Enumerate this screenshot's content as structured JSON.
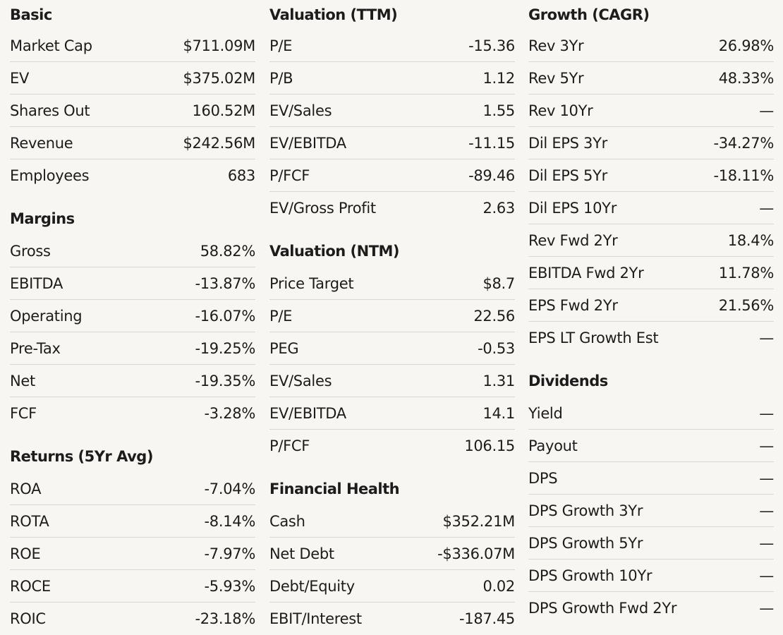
{
  "columns": [
    {
      "sections": [
        {
          "title": "Basic",
          "rows": [
            {
              "label": "Market Cap",
              "value": "$711.09M"
            },
            {
              "label": "EV",
              "value": "$375.02M"
            },
            {
              "label": "Shares Out",
              "value": "160.52M"
            },
            {
              "label": "Revenue",
              "value": "$242.56M"
            },
            {
              "label": "Employees",
              "value": "683"
            }
          ]
        },
        {
          "title": "Margins",
          "rows": [
            {
              "label": "Gross",
              "value": "58.82%"
            },
            {
              "label": "EBITDA",
              "value": "-13.87%"
            },
            {
              "label": "Operating",
              "value": "-16.07%"
            },
            {
              "label": "Pre-Tax",
              "value": "-19.25%"
            },
            {
              "label": "Net",
              "value": "-19.35%"
            },
            {
              "label": "FCF",
              "value": "-3.28%"
            }
          ]
        },
        {
          "title": "Returns (5Yr Avg)",
          "rows": [
            {
              "label": "ROA",
              "value": "-7.04%"
            },
            {
              "label": "ROTA",
              "value": "-8.14%"
            },
            {
              "label": "ROE",
              "value": "-7.97%"
            },
            {
              "label": "ROCE",
              "value": "-5.93%"
            },
            {
              "label": "ROIC",
              "value": "-23.18%"
            }
          ]
        }
      ]
    },
    {
      "sections": [
        {
          "title": "Valuation (TTM)",
          "rows": [
            {
              "label": "P/E",
              "value": "-15.36"
            },
            {
              "label": "P/B",
              "value": "1.12"
            },
            {
              "label": "EV/Sales",
              "value": "1.55"
            },
            {
              "label": "EV/EBITDA",
              "value": "-11.15"
            },
            {
              "label": "P/FCF",
              "value": "-89.46"
            },
            {
              "label": "EV/Gross Profit",
              "value": "2.63"
            }
          ]
        },
        {
          "title": "Valuation (NTM)",
          "rows": [
            {
              "label": "Price Target",
              "value": "$8.7"
            },
            {
              "label": "P/E",
              "value": "22.56"
            },
            {
              "label": "PEG",
              "value": "-0.53"
            },
            {
              "label": "EV/Sales",
              "value": "1.31"
            },
            {
              "label": "EV/EBITDA",
              "value": "14.1"
            },
            {
              "label": "P/FCF",
              "value": "106.15"
            }
          ]
        },
        {
          "title": "Financial Health",
          "rows": [
            {
              "label": "Cash",
              "value": "$352.21M"
            },
            {
              "label": "Net Debt",
              "value": "-$336.07M"
            },
            {
              "label": "Debt/Equity",
              "value": "0.02"
            },
            {
              "label": "EBIT/Interest",
              "value": "-187.45"
            }
          ]
        }
      ]
    },
    {
      "sections": [
        {
          "title": "Growth (CAGR)",
          "rows": [
            {
              "label": "Rev 3Yr",
              "value": "26.98%"
            },
            {
              "label": "Rev 5Yr",
              "value": "48.33%"
            },
            {
              "label": "Rev 10Yr",
              "value": "—"
            },
            {
              "label": "Dil EPS 3Yr",
              "value": "-34.27%"
            },
            {
              "label": "Dil EPS 5Yr",
              "value": "-18.11%"
            },
            {
              "label": "Dil EPS 10Yr",
              "value": "—"
            },
            {
              "label": "Rev Fwd 2Yr",
              "value": "18.4%"
            },
            {
              "label": "EBITDA Fwd 2Yr",
              "value": "11.78%"
            },
            {
              "label": "EPS Fwd 2Yr",
              "value": "21.56%"
            },
            {
              "label": "EPS LT Growth Est",
              "value": "—"
            }
          ]
        },
        {
          "title": "Dividends",
          "rows": [
            {
              "label": "Yield",
              "value": "—"
            },
            {
              "label": "Payout",
              "value": "—"
            },
            {
              "label": "DPS",
              "value": "—"
            },
            {
              "label": "DPS Growth 3Yr",
              "value": "—"
            },
            {
              "label": "DPS Growth 5Yr",
              "value": "—"
            },
            {
              "label": "DPS Growth 10Yr",
              "value": "—"
            },
            {
              "label": "DPS Growth Fwd 2Yr",
              "value": "—"
            }
          ]
        }
      ]
    }
  ]
}
